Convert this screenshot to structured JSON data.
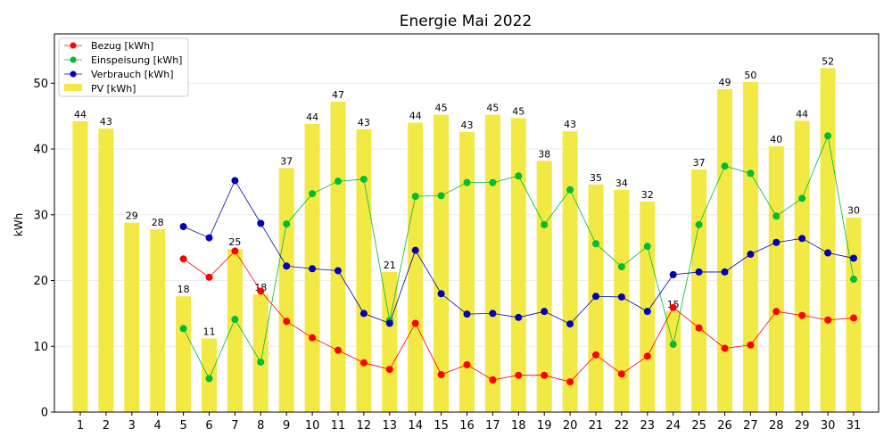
{
  "chart_data": {
    "type": "bar",
    "title": "Energie Mai 2022",
    "xlabel": "",
    "ylabel": "kWh",
    "ylim": [
      0,
      57.5
    ],
    "yticks": [
      0,
      10,
      20,
      30,
      40,
      50
    ],
    "grid": "horizontal",
    "legend_position": "top-left",
    "categories": [
      "1",
      "2",
      "3",
      "4",
      "5",
      "6",
      "7",
      "8",
      "9",
      "10",
      "11",
      "12",
      "13",
      "14",
      "15",
      "16",
      "17",
      "18",
      "19",
      "20",
      "21",
      "22",
      "23",
      "24",
      "25",
      "26",
      "27",
      "28",
      "29",
      "30",
      "31"
    ],
    "bars": {
      "name": "PV [kWh]",
      "color": "#f2e944",
      "values": [
        44.2,
        43.1,
        28.8,
        27.8,
        17.6,
        11.2,
        24.8,
        17.9,
        37.1,
        43.8,
        47.2,
        43.0,
        21.3,
        44.0,
        45.2,
        42.6,
        45.2,
        44.7,
        38.2,
        42.7,
        34.6,
        33.8,
        32.0,
        15.3,
        36.9,
        49.1,
        50.2,
        40.4,
        44.3,
        52.3,
        29.6
      ],
      "labels": [
        "44",
        "43",
        "29",
        "28",
        "18",
        "11",
        "25",
        "18",
        "37",
        "44",
        "47",
        "43",
        "21",
        "44",
        "45",
        "43",
        "45",
        "45",
        "38",
        "43",
        "35",
        "34",
        "32",
        "15",
        "37",
        "49",
        "50",
        "40",
        "44",
        "52",
        "30"
      ]
    },
    "series": [
      {
        "name": "Bezug [kWh]",
        "color": "#ff0000",
        "values": [
          null,
          null,
          null,
          null,
          23.3,
          20.5,
          24.5,
          18.4,
          13.8,
          11.3,
          9.4,
          7.5,
          6.5,
          13.5,
          5.7,
          7.2,
          4.9,
          5.6,
          5.6,
          4.6,
          8.7,
          5.8,
          8.5,
          15.9,
          12.8,
          9.7,
          10.2,
          15.3,
          14.7,
          14.0,
          14.3
        ]
      },
      {
        "name": "Einspeisung [kWh]",
        "color": "#00bb33",
        "values": [
          null,
          null,
          null,
          null,
          12.7,
          5.1,
          14.1,
          7.6,
          28.6,
          33.2,
          35.1,
          35.4,
          13.9,
          32.8,
          32.9,
          34.9,
          34.9,
          35.9,
          28.5,
          33.8,
          25.6,
          22.1,
          25.2,
          10.3,
          28.5,
          37.4,
          36.3,
          29.8,
          32.5,
          42.0,
          20.2
        ]
      },
      {
        "name": "Verbrauch [kWh]",
        "color": "#0000bb",
        "values": [
          null,
          null,
          null,
          null,
          28.2,
          26.5,
          35.2,
          28.7,
          22.2,
          21.8,
          21.5,
          15.0,
          13.5,
          24.6,
          18.0,
          14.9,
          15.0,
          14.4,
          15.3,
          13.4,
          17.6,
          17.5,
          15.3,
          20.9,
          21.3,
          21.3,
          24.0,
          25.8,
          26.4,
          24.2,
          23.4
        ]
      }
    ]
  }
}
